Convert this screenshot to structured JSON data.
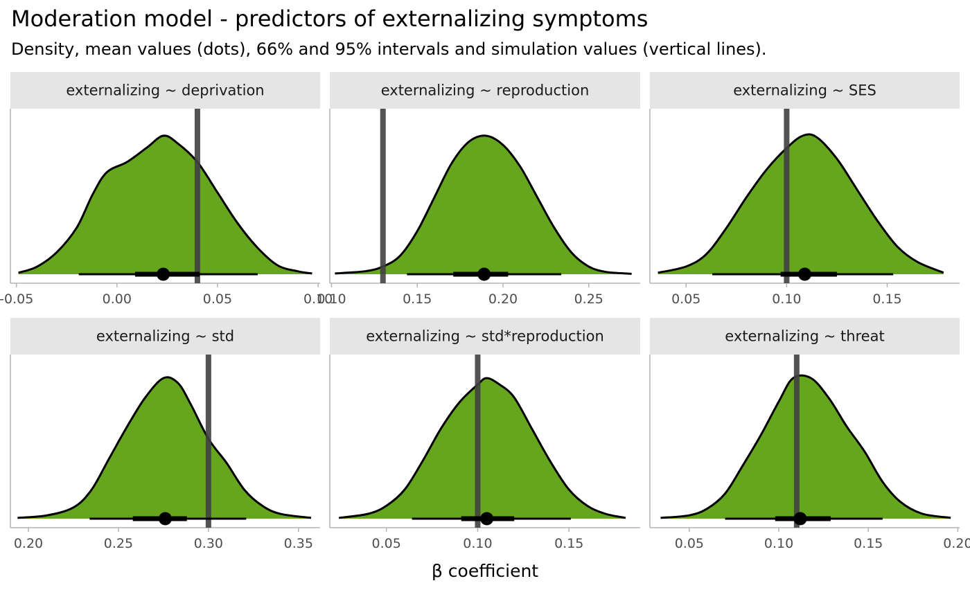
{
  "title": "Moderation model - predictors of externalizing symptoms",
  "subtitle": "Density, mean values (dots), 66% and 95% intervals and simulation values (vertical lines).",
  "colors": {
    "fill": "#66a61e",
    "strip": "#e5e5e5",
    "axis": "#b3b3b3",
    "tick_text": "#4d4d4d",
    "sim_line": "#404040"
  },
  "chart_data": {
    "type": "density",
    "xlabel": "β coefficient",
    "panels": [
      {
        "label": "externalizing ~ deprivation",
        "xlim": [
          -0.053,
          0.101
        ],
        "ticks": [
          -0.05,
          0.0,
          0.05,
          0.1
        ],
        "tick_labels": [
          "-0.05",
          "0.00",
          "0.05",
          "0.10"
        ],
        "density_range": [
          -0.049,
          0.097
        ],
        "density_points": [
          [
            -0.049,
            0.01
          ],
          [
            -0.04,
            0.05
          ],
          [
            -0.03,
            0.15
          ],
          [
            -0.02,
            0.32
          ],
          [
            -0.012,
            0.55
          ],
          [
            -0.005,
            0.7
          ],
          [
            0.005,
            0.77
          ],
          [
            0.015,
            0.87
          ],
          [
            0.023,
            0.95
          ],
          [
            0.03,
            0.9
          ],
          [
            0.04,
            0.77
          ],
          [
            0.05,
            0.56
          ],
          [
            0.06,
            0.35
          ],
          [
            0.07,
            0.18
          ],
          [
            0.08,
            0.06
          ],
          [
            0.09,
            0.02
          ],
          [
            0.097,
            0.005
          ]
        ],
        "mean": 0.023,
        "interval_66": [
          0.009,
          0.041
        ],
        "interval_95": [
          -0.019,
          0.07
        ],
        "simulation_value": 0.04
      },
      {
        "label": "externalizing ~ reproduction",
        "xlim": [
          0.099,
          0.28
        ],
        "ticks": [
          0.1,
          0.15,
          0.2,
          0.25
        ],
        "tick_labels": [
          "0.10",
          "0.15",
          "0.20",
          "0.25"
        ],
        "density_range": [
          0.102,
          0.275
        ],
        "density_points": [
          [
            0.102,
            0.005
          ],
          [
            0.12,
            0.02
          ],
          [
            0.13,
            0.05
          ],
          [
            0.14,
            0.12
          ],
          [
            0.15,
            0.28
          ],
          [
            0.16,
            0.5
          ],
          [
            0.17,
            0.72
          ],
          [
            0.18,
            0.86
          ],
          [
            0.19,
            0.9
          ],
          [
            0.2,
            0.84
          ],
          [
            0.21,
            0.7
          ],
          [
            0.22,
            0.5
          ],
          [
            0.23,
            0.3
          ],
          [
            0.24,
            0.14
          ],
          [
            0.25,
            0.05
          ],
          [
            0.26,
            0.015
          ],
          [
            0.275,
            0.003
          ]
        ],
        "mean": 0.189,
        "interval_66": [
          0.171,
          0.203
        ],
        "interval_95": [
          0.144,
          0.234
        ],
        "simulation_value": 0.13
      },
      {
        "label": "externalizing ~ SES",
        "xlim": [
          0.032,
          0.186
        ],
        "ticks": [
          0.05,
          0.1,
          0.15
        ],
        "tick_labels": [
          "0.05",
          "0.10",
          "0.15"
        ],
        "density_range": [
          0.036,
          0.178
        ],
        "density_points": [
          [
            0.036,
            0.01
          ],
          [
            0.05,
            0.05
          ],
          [
            0.06,
            0.13
          ],
          [
            0.07,
            0.3
          ],
          [
            0.08,
            0.5
          ],
          [
            0.09,
            0.68
          ],
          [
            0.1,
            0.82
          ],
          [
            0.108,
            0.9
          ],
          [
            0.115,
            0.89
          ],
          [
            0.125,
            0.75
          ],
          [
            0.135,
            0.55
          ],
          [
            0.145,
            0.35
          ],
          [
            0.155,
            0.18
          ],
          [
            0.165,
            0.08
          ],
          [
            0.178,
            0.01
          ]
        ],
        "mean": 0.109,
        "interval_66": [
          0.097,
          0.125
        ],
        "interval_95": [
          0.063,
          0.153
        ],
        "simulation_value": 0.1
      },
      {
        "label": "externalizing ~ std",
        "xlim": [
          0.19,
          0.362
        ],
        "ticks": [
          0.2,
          0.25,
          0.3,
          0.35
        ],
        "tick_labels": [
          "0.20",
          "0.25",
          "0.30",
          "0.35"
        ],
        "density_range": [
          0.194,
          0.357
        ],
        "density_points": [
          [
            0.194,
            0.005
          ],
          [
            0.21,
            0.02
          ],
          [
            0.225,
            0.07
          ],
          [
            0.235,
            0.18
          ],
          [
            0.245,
            0.38
          ],
          [
            0.255,
            0.58
          ],
          [
            0.265,
            0.76
          ],
          [
            0.275,
            0.88
          ],
          [
            0.283,
            0.85
          ],
          [
            0.29,
            0.72
          ],
          [
            0.3,
            0.5
          ],
          [
            0.31,
            0.35
          ],
          [
            0.32,
            0.18
          ],
          [
            0.33,
            0.08
          ],
          [
            0.34,
            0.03
          ],
          [
            0.357,
            0.005
          ]
        ],
        "mean": 0.276,
        "interval_66": [
          0.258,
          0.288
        ],
        "interval_95": [
          0.234,
          0.321
        ],
        "simulation_value": 0.3
      },
      {
        "label": "externalizing ~ std*reproduction",
        "xlim": [
          0.019,
          0.189
        ],
        "ticks": [
          0.05,
          0.1,
          0.15
        ],
        "tick_labels": [
          "0.05",
          "0.10",
          "0.15"
        ],
        "density_range": [
          0.024,
          0.181
        ],
        "density_points": [
          [
            0.024,
            0.005
          ],
          [
            0.04,
            0.03
          ],
          [
            0.05,
            0.08
          ],
          [
            0.06,
            0.18
          ],
          [
            0.07,
            0.36
          ],
          [
            0.08,
            0.56
          ],
          [
            0.09,
            0.72
          ],
          [
            0.1,
            0.83
          ],
          [
            0.105,
            0.87
          ],
          [
            0.112,
            0.83
          ],
          [
            0.12,
            0.75
          ],
          [
            0.13,
            0.55
          ],
          [
            0.14,
            0.35
          ],
          [
            0.15,
            0.18
          ],
          [
            0.16,
            0.08
          ],
          [
            0.17,
            0.03
          ],
          [
            0.181,
            0.005
          ]
        ],
        "mean": 0.105,
        "interval_66": [
          0.091,
          0.12
        ],
        "interval_95": [
          0.064,
          0.151
        ],
        "simulation_value": 0.1
      },
      {
        "label": "externalizing ~ threat",
        "xlim": [
          0.028,
          0.201
        ],
        "ticks": [
          0.05,
          0.1,
          0.15,
          0.2
        ],
        "tick_labels": [
          "0.05",
          "0.10",
          "0.15",
          "0.20"
        ],
        "density_range": [
          0.034,
          0.196
        ],
        "density_points": [
          [
            0.034,
            0.005
          ],
          [
            0.05,
            0.02
          ],
          [
            0.06,
            0.06
          ],
          [
            0.07,
            0.15
          ],
          [
            0.08,
            0.32
          ],
          [
            0.09,
            0.5
          ],
          [
            0.1,
            0.7
          ],
          [
            0.108,
            0.84
          ],
          [
            0.118,
            0.84
          ],
          [
            0.128,
            0.72
          ],
          [
            0.138,
            0.55
          ],
          [
            0.148,
            0.4
          ],
          [
            0.158,
            0.22
          ],
          [
            0.168,
            0.1
          ],
          [
            0.18,
            0.03
          ],
          [
            0.196,
            0.005
          ]
        ],
        "mean": 0.112,
        "interval_66": [
          0.098,
          0.129
        ],
        "interval_95": [
          0.07,
          0.158
        ],
        "simulation_value": 0.11
      }
    ]
  }
}
